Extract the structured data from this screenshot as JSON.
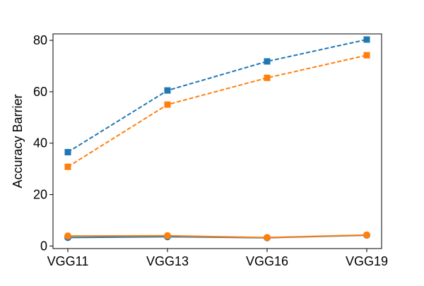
{
  "chart_data": {
    "type": "line",
    "title": "",
    "xlabel": "",
    "ylabel": "Accuracy Barrier",
    "categories": [
      "VGG11",
      "VGG13",
      "VGG16",
      "VGG19"
    ],
    "ylim": [
      -1,
      82.5
    ],
    "yticks": [
      0,
      20,
      40,
      60,
      80
    ],
    "grid": false,
    "legend": "none",
    "series": [
      {
        "color": "#1f77b4",
        "line_style": "dashed",
        "marker": "square",
        "values": [
          36.5,
          60.5,
          71.8,
          80.3
        ]
      },
      {
        "color": "#ff7f0e",
        "line_style": "dashed",
        "marker": "square",
        "values": [
          30.8,
          55.0,
          65.4,
          74.2
        ]
      },
      {
        "color": "#1f77b4",
        "line_style": "solid",
        "marker": "circle",
        "values": [
          3.3,
          3.6,
          3.2,
          4.2
        ]
      },
      {
        "color": "#ff7f0e",
        "line_style": "solid",
        "marker": "circle",
        "values": [
          3.9,
          4.0,
          3.3,
          4.3
        ]
      }
    ]
  }
}
